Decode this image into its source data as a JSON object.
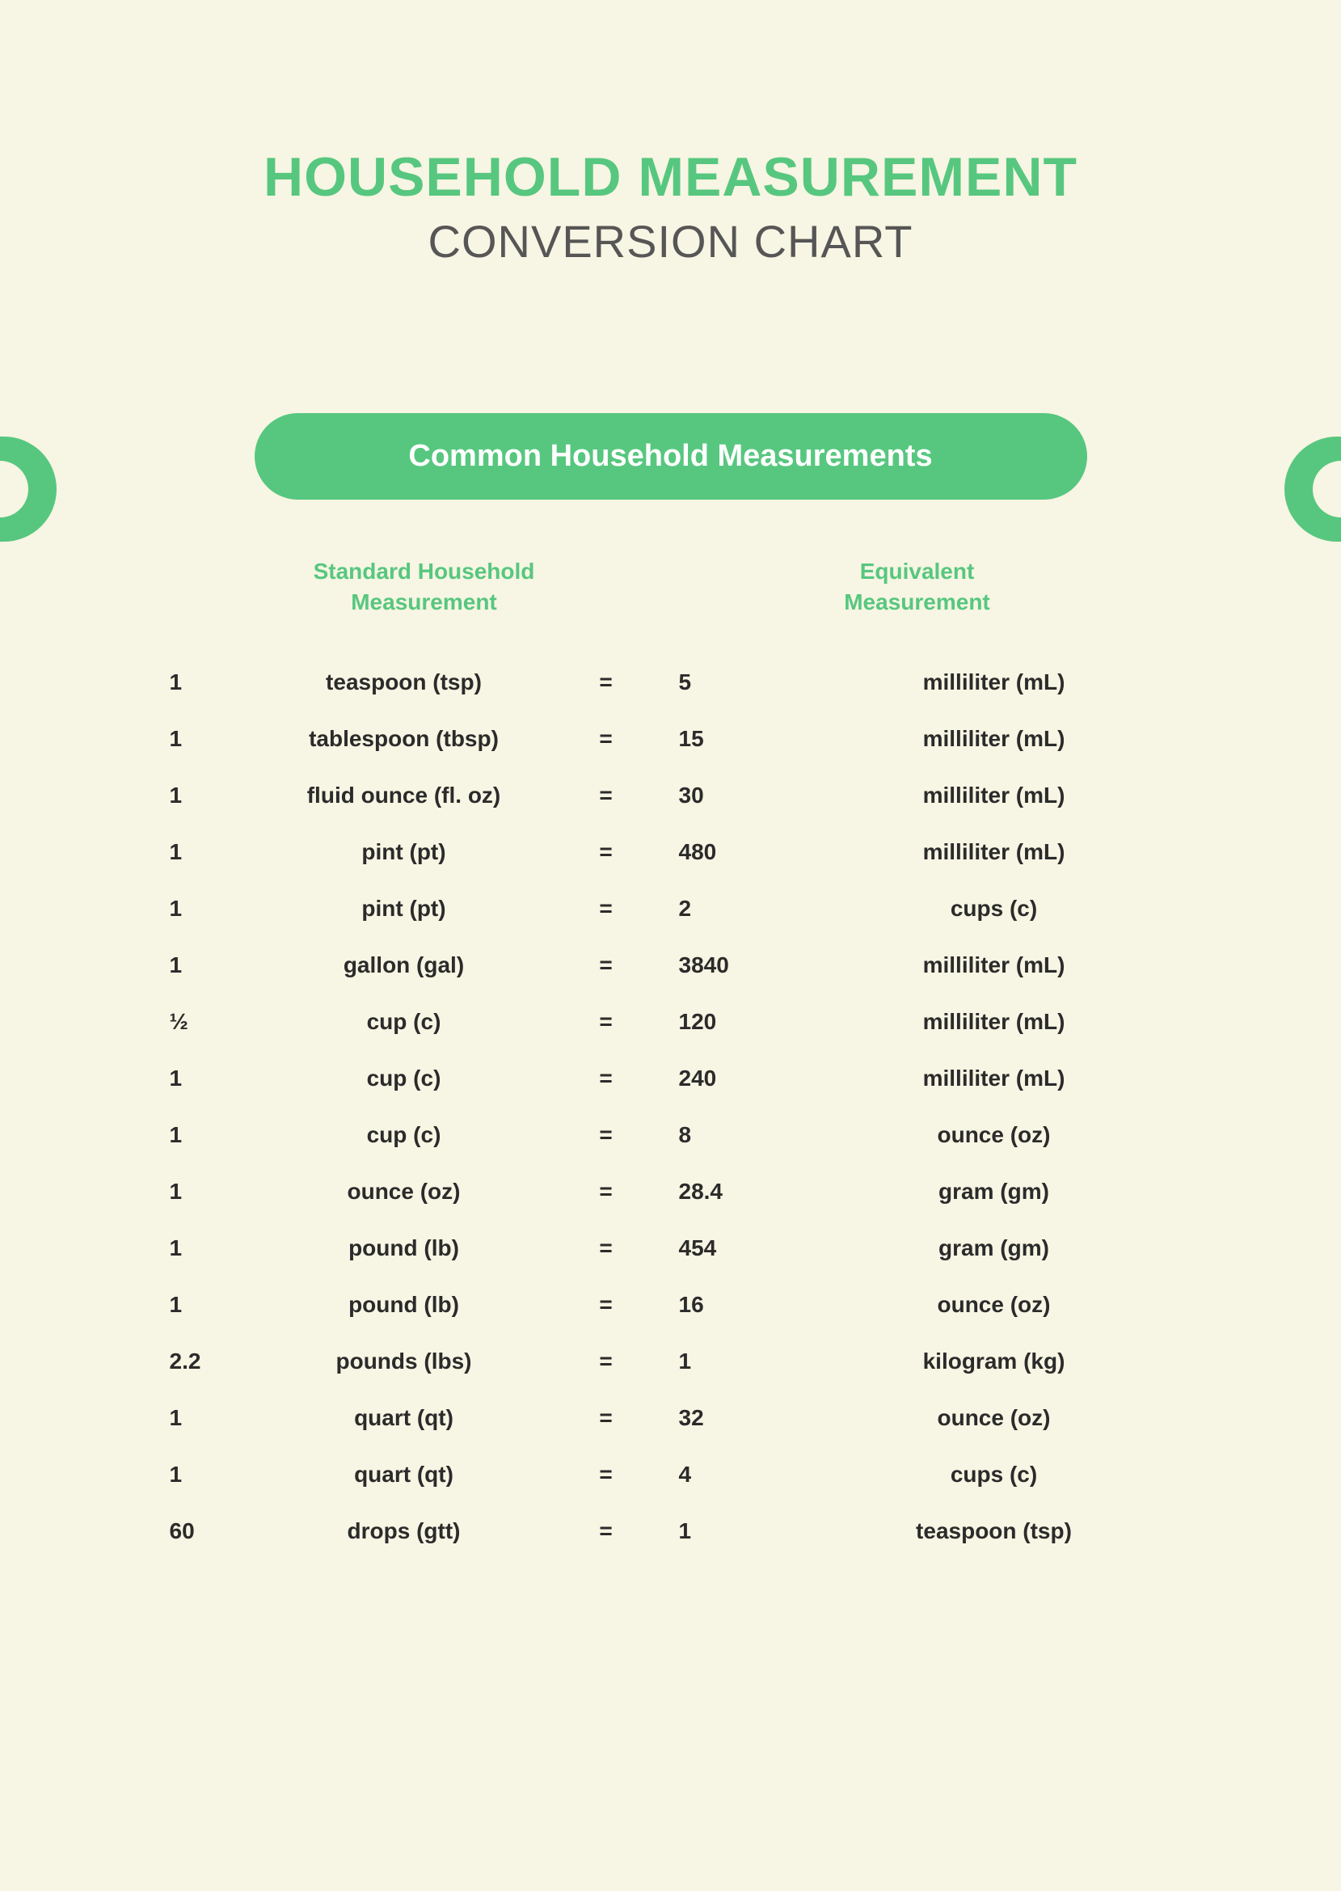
{
  "colors": {
    "background": "#f7f5e3",
    "accent": "#57c77f",
    "pill_text": "#ffffff",
    "title2": "#565656",
    "body_text": "#2b2b2b"
  },
  "title": {
    "line1": "HOUSEHOLD MEASUREMENT",
    "line2": "CONVERSION CHART"
  },
  "pill_label": "Common Household Measurements",
  "columns": {
    "left_line1": "Standard Household",
    "left_line2": "Measurement",
    "right_line1": "Equivalent",
    "right_line2": "Measurement"
  },
  "rows": [
    {
      "q1": "1",
      "u1": "teaspoon (tsp)",
      "eq": "=",
      "q2": "5",
      "u2": "milliliter (mL)"
    },
    {
      "q1": "1",
      "u1": "tablespoon (tbsp)",
      "eq": "=",
      "q2": "15",
      "u2": "milliliter (mL)"
    },
    {
      "q1": "1",
      "u1": "fluid ounce (fl. oz)",
      "eq": "=",
      "q2": "30",
      "u2": "milliliter (mL)"
    },
    {
      "q1": "1",
      "u1": "pint (pt)",
      "eq": "=",
      "q2": "480",
      "u2": "milliliter (mL)"
    },
    {
      "q1": "1",
      "u1": "pint (pt)",
      "eq": "=",
      "q2": "2",
      "u2": "cups (c)"
    },
    {
      "q1": "1",
      "u1": "gallon (gal)",
      "eq": "=",
      "q2": "3840",
      "u2": "milliliter (mL)"
    },
    {
      "q1": "½",
      "u1": "cup (c)",
      "eq": "=",
      "q2": "120",
      "u2": "milliliter (mL)"
    },
    {
      "q1": "1",
      "u1": "cup (c)",
      "eq": "=",
      "q2": "240",
      "u2": "milliliter (mL)"
    },
    {
      "q1": "1",
      "u1": "cup (c)",
      "eq": "=",
      "q2": "8",
      "u2": "ounce (oz)"
    },
    {
      "q1": "1",
      "u1": "ounce (oz)",
      "eq": "=",
      "q2": "28.4",
      "u2": "gram (gm)"
    },
    {
      "q1": "1",
      "u1": "pound (lb)",
      "eq": "=",
      "q2": "454",
      "u2": "gram (gm)"
    },
    {
      "q1": "1",
      "u1": "pound (lb)",
      "eq": "=",
      "q2": "16",
      "u2": "ounce (oz)"
    },
    {
      "q1": "2.2",
      "u1": "pounds (lbs)",
      "eq": "=",
      "q2": "1",
      "u2": "kilogram (kg)"
    },
    {
      "q1": "1",
      "u1": "quart (qt)",
      "eq": "=",
      "q2": "32",
      "u2": "ounce (oz)"
    },
    {
      "q1": "1",
      "u1": "quart (qt)",
      "eq": "=",
      "q2": "4",
      "u2": "cups (c)"
    },
    {
      "q1": "60",
      "u1": "drops (gtt)",
      "eq": "=",
      "q2": "1",
      "u2": "teaspoon (tsp)"
    }
  ]
}
